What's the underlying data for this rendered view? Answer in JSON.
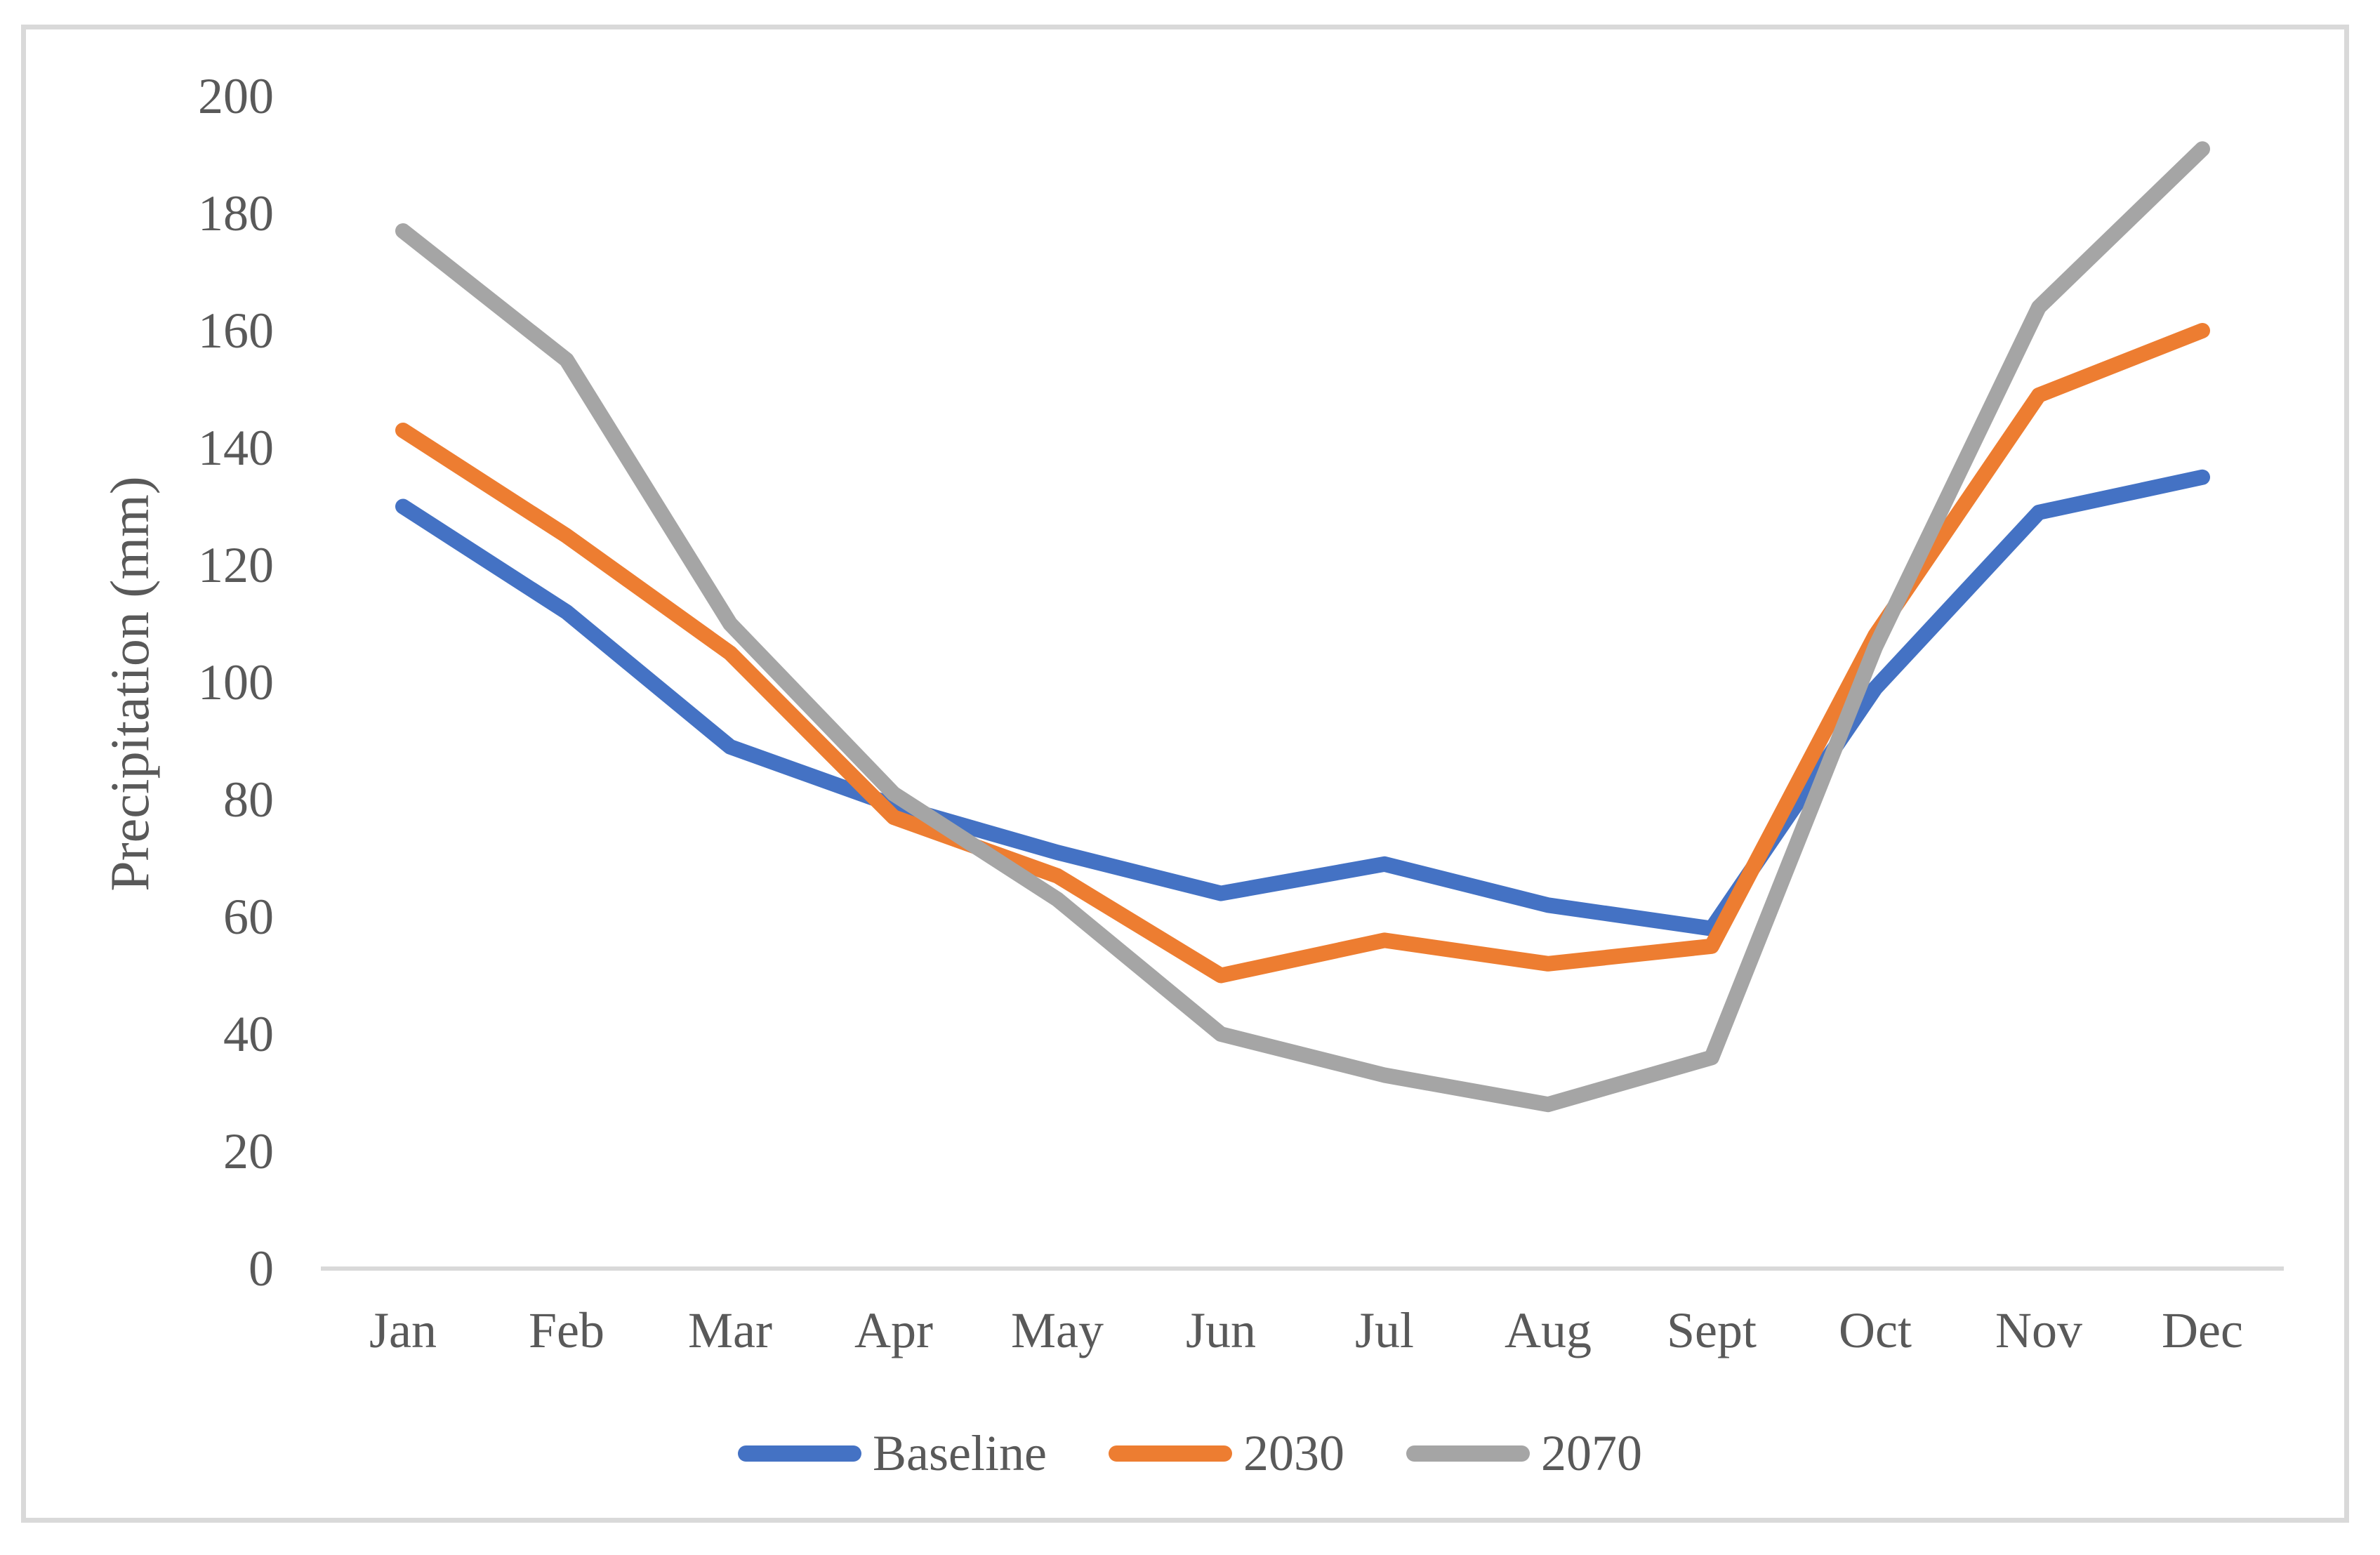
{
  "chart_data": {
    "type": "line",
    "title": "",
    "xlabel": "",
    "ylabel": "Precipitation (mm)",
    "ylim": [
      0,
      200
    ],
    "y_tick_step": 20,
    "y_ticks": [
      "0",
      "20",
      "40",
      "60",
      "80",
      "100",
      "120",
      "140",
      "160",
      "180",
      "200"
    ],
    "grid": false,
    "legend_position": "bottom",
    "categories": [
      "Jan",
      "Feb",
      "Mar",
      "Apr",
      "May",
      "Jun",
      "Jul",
      "Aug",
      "Sept",
      "Oct",
      "Nov",
      "Dec"
    ],
    "series": [
      {
        "name": "Baseline",
        "color": "#4472C4",
        "values": [
          130,
          112,
          89,
          79,
          71,
          64,
          69,
          62,
          58,
          99,
          129,
          135
        ]
      },
      {
        "name": "2030",
        "color": "#ED7D31",
        "values": [
          143,
          125,
          105,
          77,
          67,
          50,
          56,
          52,
          55,
          108,
          149,
          160
        ]
      },
      {
        "name": "2070",
        "color": "#A5A5A5",
        "values": [
          177,
          155,
          110,
          81,
          63,
          40,
          33,
          28,
          36,
          106,
          164,
          191
        ]
      }
    ]
  },
  "colors": {
    "text": "#595959",
    "axis_line": "#D9D9D9",
    "border": "#D9D9D9",
    "background": "#FFFFFF"
  }
}
